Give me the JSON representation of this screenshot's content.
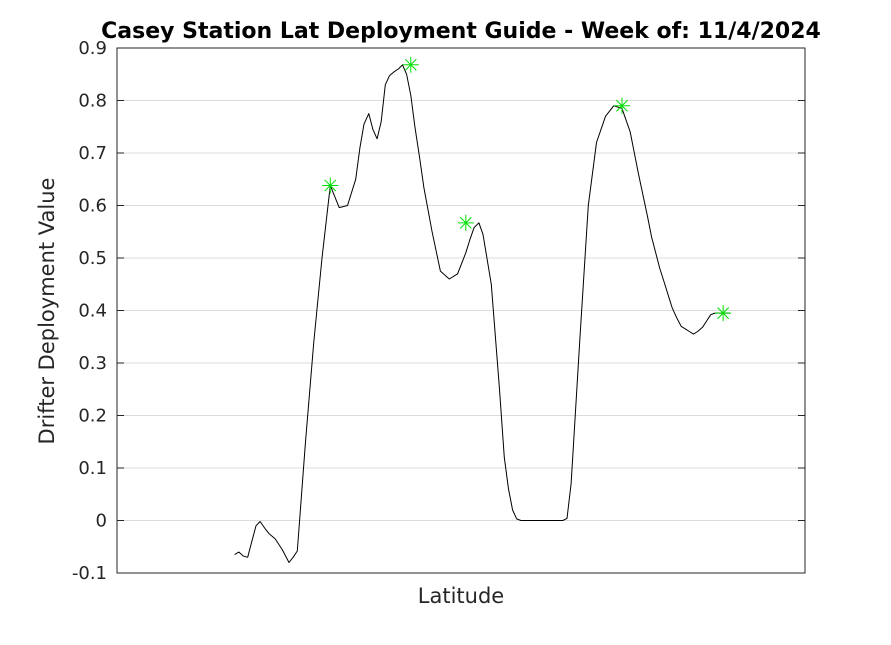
{
  "chart_data": {
    "type": "line",
    "title": "Casey Station Lat Deployment Guide - Week of: 11/4/2024",
    "xlabel": "Latitude",
    "ylabel": "Drifter Deployment Value",
    "ylim": [
      -0.1,
      0.9
    ],
    "xlim": [
      0,
      100
    ],
    "yticks": [
      "-0.1",
      "0",
      "0.1",
      "0.2",
      "0.3",
      "0.4",
      "0.5",
      "0.6",
      "0.7",
      "0.8",
      "0.9"
    ],
    "xticks": [],
    "grid": "horizontal",
    "series": [
      {
        "line_color": "#000000",
        "x": [
          17.1,
          17.7,
          18.4,
          19.0,
          19.6,
          20.2,
          20.8,
          21.5,
          22.1,
          23.0,
          24.0,
          25.0,
          25.6,
          26.2,
          27.4,
          28.6,
          29.8,
          31.0,
          32.3,
          33.5,
          34.7,
          35.3,
          35.9,
          36.6,
          37.2,
          37.8,
          38.4,
          39.0,
          39.6,
          40.3,
          40.9,
          41.5,
          42.1,
          42.7,
          43.3,
          44.0,
          44.6,
          45.8,
          47.0,
          48.3,
          49.5,
          50.7,
          51.3,
          51.9,
          52.6,
          53.2,
          54.4,
          55.6,
          56.3,
          56.9,
          57.5,
          58.1,
          58.7,
          59.3,
          59.9,
          60.5,
          61.1,
          61.7,
          62.3,
          63.0,
          63.6,
          64.2,
          64.8,
          65.4,
          66.0,
          67.3,
          68.5,
          69.7,
          71.0,
          72.2,
          73.4,
          74.6,
          75.8,
          77.1,
          77.7,
          78.3,
          78.9,
          79.5,
          80.1,
          80.7,
          81.4,
          82.0,
          82.6,
          83.2,
          83.8,
          84.4,
          85.1,
          85.7,
          86.3,
          86.9,
          87.5,
          88.1,
          88.7,
          89.1
        ],
        "y": [
          -0.065,
          -0.06,
          -0.068,
          -0.07,
          -0.04,
          -0.01,
          -0.002,
          -0.015,
          -0.025,
          -0.035,
          -0.055,
          -0.08,
          -0.07,
          -0.058,
          0.15,
          0.34,
          0.5,
          0.638,
          0.596,
          0.6,
          0.65,
          0.71,
          0.755,
          0.775,
          0.745,
          0.727,
          0.76,
          0.83,
          0.847,
          0.855,
          0.86,
          0.868,
          0.85,
          0.81,
          0.75,
          0.69,
          0.635,
          0.55,
          0.475,
          0.46,
          0.47,
          0.51,
          0.535,
          0.558,
          0.567,
          0.545,
          0.45,
          0.25,
          0.12,
          0.06,
          0.02,
          0.003,
          0.0,
          0.0,
          0.0,
          0.0,
          0.0,
          0.0,
          0.0,
          0.0,
          0.0,
          0.0,
          0.0,
          0.004,
          0.07,
          0.35,
          0.6,
          0.72,
          0.77,
          0.79,
          0.785,
          0.74,
          0.66,
          0.58,
          0.54,
          0.51,
          0.48,
          0.455,
          0.43,
          0.405,
          0.385,
          0.37,
          0.365,
          0.36,
          0.355,
          0.36,
          0.368,
          0.38,
          0.392,
          0.395,
          0.395,
          0.395,
          0.395,
          0.395
        ]
      }
    ],
    "markers": {
      "color": "#00dd00",
      "shape": "asterisk",
      "x": [
        31.0,
        42.7,
        50.7,
        73.4,
        88.1
      ],
      "y": [
        0.638,
        0.868,
        0.567,
        0.79,
        0.395
      ]
    }
  }
}
